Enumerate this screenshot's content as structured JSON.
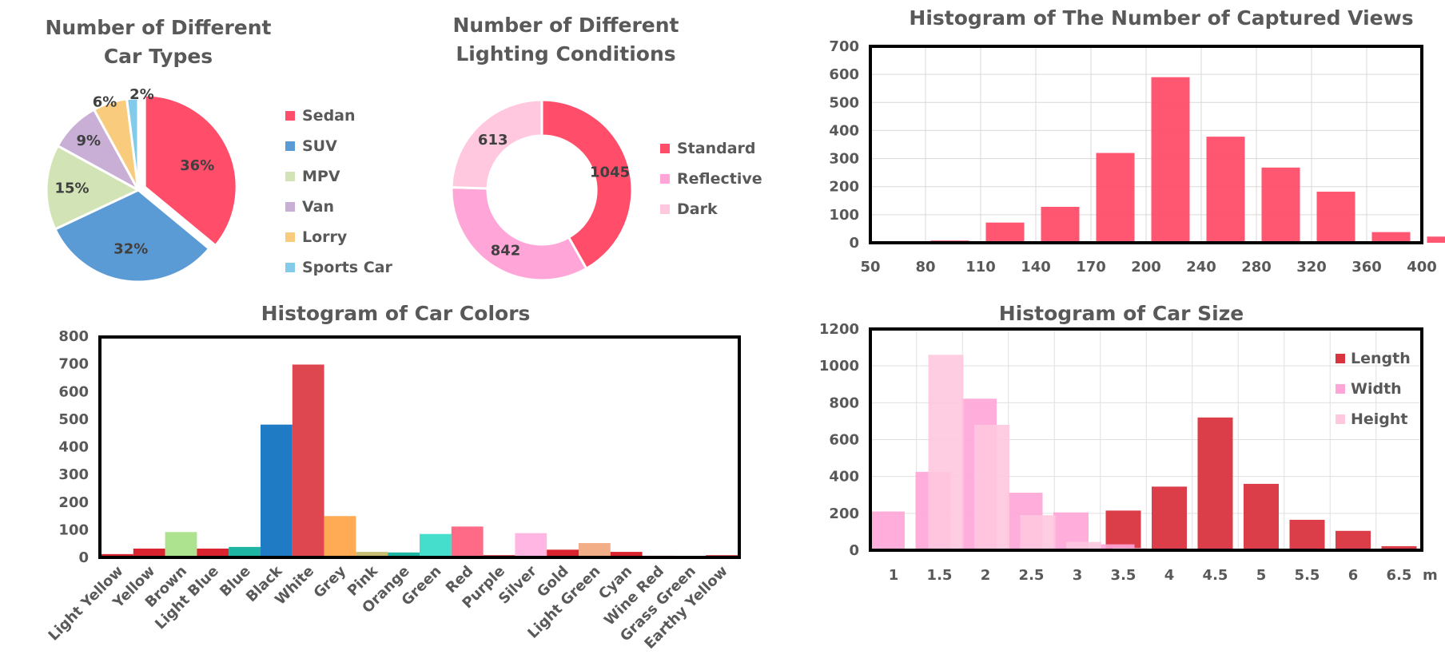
{
  "chart_data": [
    {
      "id": "car_types",
      "type": "pie",
      "title_lines": [
        "Number of Different",
        "Car Types"
      ],
      "categories": [
        "Sedan",
        "SUV",
        "MPV",
        "Van",
        "Lorry",
        "Sports Car"
      ],
      "values": [
        36,
        32,
        15,
        9,
        6,
        2
      ],
      "value_labels": [
        "36%",
        "32%",
        "15%",
        "9%",
        "6%",
        "2%"
      ],
      "colors": [
        "#FF4D6A",
        "#5B9BD5",
        "#D2E3B5",
        "#C9AED6",
        "#F9CB7C",
        "#82CBEB"
      ],
      "legend_position": "right"
    },
    {
      "id": "lighting",
      "type": "pie",
      "subtype": "donut",
      "title_lines": [
        "Number of Different",
        "Lighting Conditions"
      ],
      "categories": [
        "Standard",
        "Reflective",
        "Dark"
      ],
      "values": [
        1045,
        842,
        613
      ],
      "value_labels": [
        "1045",
        "842",
        "613"
      ],
      "colors": [
        "#FF4D6A",
        "#FFA5D8",
        "#FFC8DF"
      ],
      "legend_position": "right"
    },
    {
      "id": "views",
      "type": "bar",
      "title": "Histogram of The Number of Captured Views",
      "categories": [
        "50",
        "80",
        "110",
        "140",
        "170",
        "200",
        "240",
        "280",
        "320",
        "360",
        "400"
      ],
      "values": [
        5,
        8,
        72,
        128,
        320,
        590,
        378,
        268,
        182,
        38,
        22
      ],
      "yticks": [
        "0",
        "100",
        "200",
        "300",
        "400",
        "500",
        "600",
        "700"
      ],
      "ylim": [
        0,
        700
      ],
      "color": "#FF4D6A",
      "grid": true
    },
    {
      "id": "colors",
      "type": "bar",
      "title": "Histogram of Car Colors",
      "categories": [
        "Light Yellow",
        "Yellow",
        "Brown",
        "Light Blue",
        "Blue",
        "Black",
        "White",
        "Grey",
        "Pink",
        "Orange",
        "Green",
        "Red",
        "Purple",
        "Silver",
        "Gold",
        "Light Green",
        "Cyan",
        "Wine Red",
        "Grass Green",
        "Earthy Yellow"
      ],
      "values": [
        12,
        32,
        92,
        32,
        38,
        482,
        700,
        150,
        20,
        18,
        85,
        112,
        8,
        88,
        28,
        52,
        20,
        6,
        4,
        8
      ],
      "colors": [
        "#D9232E",
        "#D9232E",
        "#ADE38F",
        "#D9232E",
        "#1EB5A2",
        "#1F7BC4",
        "#DF4750",
        "#FFAA55",
        "#C9BD74",
        "#1EB5A2",
        "#45DDCB",
        "#FF6B86",
        "#D9232E",
        "#FFB6E3",
        "#D9232E",
        "#F2AE86",
        "#D9232E",
        "#D9232E",
        "#D9232E",
        "#D9232E"
      ],
      "yticks": [
        "0",
        "100",
        "200",
        "300",
        "400",
        "500",
        "600",
        "700",
        "800"
      ],
      "ylim": [
        0,
        800
      ],
      "grid": false
    },
    {
      "id": "size",
      "type": "bar",
      "title": "Histogram of Car Size",
      "categories": [
        "1",
        "1.5",
        "2",
        "2.5",
        "3",
        "3.5",
        "4",
        "4.5",
        "5",
        "5.5",
        "6",
        "6.5"
      ],
      "unit_label": "m",
      "series": [
        {
          "name": "Length",
          "color": "#D9343E",
          "values": [
            0,
            0,
            0,
            0,
            0,
            215,
            345,
            720,
            360,
            165,
            105,
            22
          ]
        },
        {
          "name": "Width",
          "color": "#FFA5D8",
          "values": [
            210,
            425,
            822,
            312,
            205,
            32,
            0,
            0,
            0,
            0,
            0,
            0
          ]
        },
        {
          "name": "Height",
          "color": "#FFC8DF",
          "values": [
            0,
            1060,
            680,
            190,
            45,
            12,
            0,
            0,
            0,
            0,
            0,
            0
          ]
        }
      ],
      "yticks": [
        "0",
        "200",
        "400",
        "600",
        "800",
        "1000",
        "1200"
      ],
      "ylim": [
        0,
        1200
      ],
      "legend_position": "top-right",
      "grid": true
    }
  ]
}
